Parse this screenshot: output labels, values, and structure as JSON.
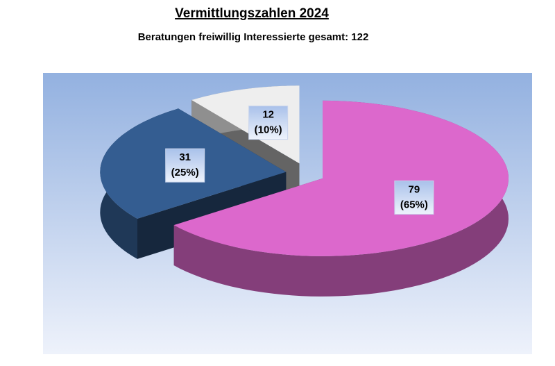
{
  "chart_data": {
    "type": "pie3d",
    "title": "Vermittlungszahlen 2024",
    "subtitle": "Beratungen freiwillig Interessierte gesamt: 122",
    "values": [
      79,
      31,
      12
    ],
    "percent_labels": [
      "(65%)",
      "(25%)",
      "(10%)"
    ],
    "colors": [
      "#dc68cc",
      "#345d91",
      "#eeeeee"
    ],
    "exploded": true
  }
}
